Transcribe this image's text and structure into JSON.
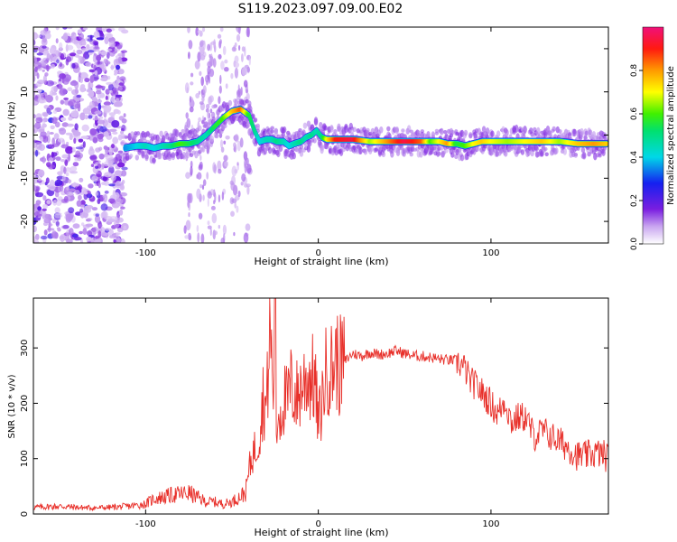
{
  "title": "S119.2023.097.09.00.E02",
  "chart_data": [
    {
      "type": "heatmap",
      "xlabel": "Height of straight line (km)",
      "ylabel": "Frequency (Hz)",
      "xlim": [
        -165,
        168
      ],
      "ylim": [
        -25,
        25
      ],
      "x_ticks": [
        -100,
        0,
        100
      ],
      "y_ticks": [
        -20,
        -10,
        0,
        10,
        20
      ],
      "colorbar": {
        "label": "Normalized spectral amplitude",
        "range": [
          0,
          1
        ],
        "ticks": [
          "0.0",
          "0.2",
          "0.4",
          "0.6",
          "0.8"
        ],
        "colormap": "white-purple-blue-cyan-green-yellow-orange-red-magenta"
      },
      "ridge": {
        "x": [
          -112,
          -105,
          -100,
          -95,
          -90,
          -85,
          -80,
          -75,
          -70,
          -65,
          -60,
          -55,
          -50,
          -45,
          -40,
          -37,
          -34,
          -30,
          -27,
          -24,
          -20,
          -17,
          -14,
          -10,
          -7,
          -4,
          -1,
          2,
          5,
          10,
          20,
          30,
          40,
          50,
          60,
          65,
          70,
          75,
          80,
          85,
          90,
          95,
          100,
          110,
          120,
          130,
          140,
          150,
          160,
          167
        ],
        "y": [
          -3,
          -2.5,
          -2.5,
          -3,
          -2.5,
          -2.5,
          -2,
          -2,
          -1.5,
          0,
          2,
          4,
          5.5,
          6,
          4.5,
          1,
          -1.5,
          -1,
          -1,
          -1.5,
          -1.5,
          -2.5,
          -2,
          -1.5,
          -0.5,
          0,
          1,
          -0.5,
          -1,
          -1,
          -1,
          -1.5,
          -1.5,
          -1.5,
          -1.5,
          -1.5,
          -1.5,
          -2,
          -2,
          -2.5,
          -2,
          -1.5,
          -1.5,
          -1.5,
          -1.5,
          -1.5,
          -1.5,
          -2,
          -2,
          -2
        ],
        "amplitude": [
          0.35,
          0.4,
          0.45,
          0.4,
          0.45,
          0.5,
          0.6,
          0.55,
          0.5,
          0.45,
          0.55,
          0.6,
          0.75,
          0.85,
          0.55,
          0.5,
          0.4,
          0.45,
          0.45,
          0.5,
          0.45,
          0.4,
          0.45,
          0.5,
          0.45,
          0.5,
          0.45,
          0.5,
          0.7,
          0.9,
          0.95,
          0.65,
          0.8,
          0.95,
          0.85,
          0.6,
          0.7,
          0.8,
          0.55,
          0.6,
          0.7,
          0.75,
          0.7,
          0.65,
          0.7,
          0.75,
          0.65,
          0.75,
          0.8,
          0.75
        ]
      },
      "noise_region_x": [
        -165,
        -112
      ]
    },
    {
      "type": "line",
      "xlabel": "Height of straight line (km)",
      "ylabel": "SNR (10 * v/v)",
      "xlim": [
        -165,
        168
      ],
      "ylim": [
        0,
        390
      ],
      "x_ticks": [
        -100,
        0,
        100
      ],
      "y_ticks": [
        0,
        100,
        200,
        300
      ],
      "line_color": "#e8302a",
      "series": [
        {
          "x": [
            -165,
            -150,
            -140,
            -130,
            -120,
            -110,
            -100,
            -95,
            -90,
            -85,
            -80,
            -75,
            -70,
            -65,
            -60,
            -55,
            -50,
            -45,
            -42,
            -40,
            -38,
            -36,
            -34,
            -32,
            -30,
            -28,
            -26,
            -25,
            -24,
            -23,
            -22,
            -20,
            -18,
            -16,
            -14,
            -12,
            -10,
            -8,
            -6,
            -4,
            -2,
            0,
            2,
            4,
            6,
            8,
            10,
            12,
            15,
            20,
            25,
            30,
            35,
            40,
            45,
            50,
            55,
            60,
            65,
            70,
            75,
            80,
            85,
            88,
            92,
            96,
            100,
            104,
            108,
            112,
            116,
            120,
            125,
            130,
            135,
            140,
            145,
            150,
            155,
            160,
            165,
            168
          ],
          "y": [
            12,
            14,
            12,
            11,
            12,
            14,
            18,
            28,
            30,
            34,
            36,
            38,
            30,
            22,
            22,
            18,
            22,
            32,
            40,
            80,
            110,
            120,
            150,
            210,
            190,
            330,
            230,
            120,
            150,
            190,
            180,
            210,
            200,
            230,
            220,
            210,
            230,
            240,
            250,
            245,
            240,
            160,
            200,
            250,
            270,
            260,
            285,
            265,
            275,
            290,
            285,
            292,
            288,
            290,
            295,
            290,
            286,
            285,
            283,
            280,
            278,
            277,
            262,
            240,
            230,
            215,
            200,
            180,
            205,
            165,
            175,
            175,
            140,
            150,
            140,
            130,
            120,
            105,
            105,
            110,
            108,
            100
          ]
        }
      ]
    }
  ]
}
